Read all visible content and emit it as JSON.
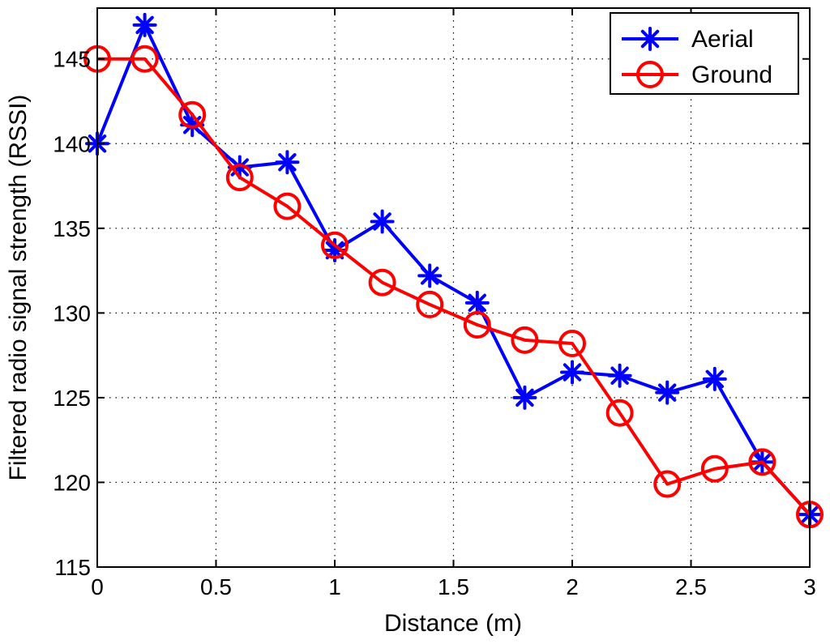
{
  "chart_data": {
    "type": "line",
    "title": "",
    "xlabel": "Distance (m)",
    "ylabel": "Filtered radio signal strength (RSSI)",
    "xlim": [
      0,
      3
    ],
    "ylim": [
      115,
      148
    ],
    "xticks": [
      0,
      0.5,
      1,
      1.5,
      2,
      2.5,
      3
    ],
    "xtick_labels": [
      "0",
      "0.5",
      "1",
      "1.5",
      "2",
      "2.5",
      "3"
    ],
    "yticks": [
      115,
      120,
      125,
      130,
      135,
      140,
      145
    ],
    "ytick_labels": [
      "115",
      "120",
      "125",
      "130",
      "135",
      "140",
      "145"
    ],
    "grid": true,
    "legend_position": "top-right",
    "x": [
      0,
      0.2,
      0.4,
      0.6,
      0.8,
      1.0,
      1.2,
      1.4,
      1.6,
      1.8,
      2.0,
      2.2,
      2.4,
      2.6,
      2.8,
      3.0
    ],
    "series": [
      {
        "name": "Aerial",
        "color": "#0000ff",
        "marker": "asterisk",
        "values": [
          140.0,
          147.0,
          141.1,
          138.6,
          138.9,
          133.7,
          135.4,
          132.2,
          130.6,
          125.0,
          126.5,
          126.3,
          125.3,
          126.1,
          121.2,
          118.1
        ]
      },
      {
        "name": "Ground",
        "color": "#ff0000",
        "marker": "circle",
        "values": [
          145.0,
          145.0,
          141.7,
          138.0,
          136.3,
          134.0,
          131.8,
          130.5,
          129.3,
          128.4,
          128.2,
          124.1,
          119.9,
          120.8,
          121.2,
          118.1
        ]
      }
    ]
  }
}
